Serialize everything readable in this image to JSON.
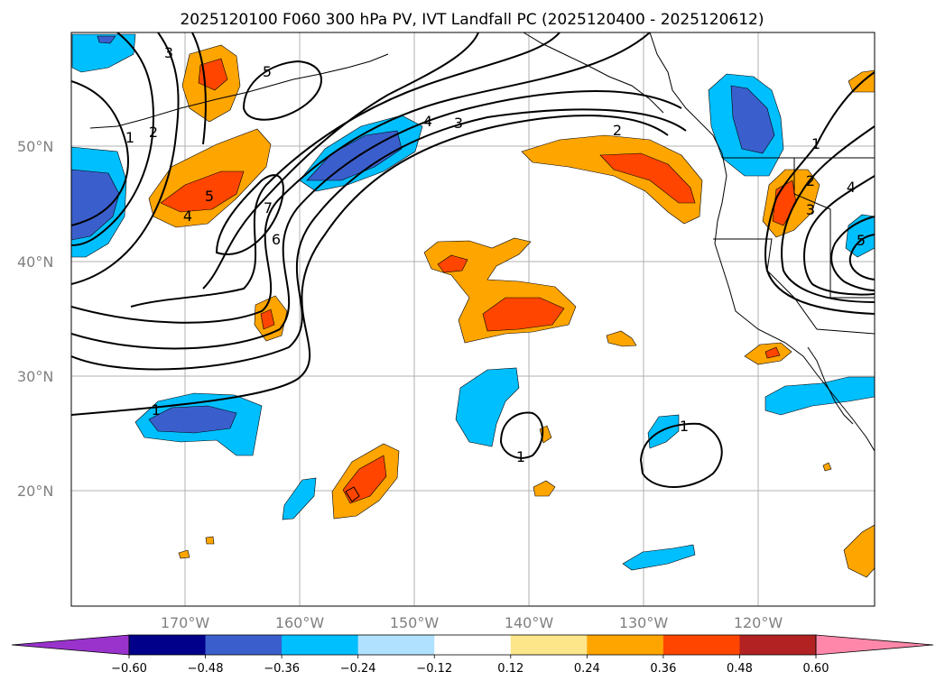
{
  "figure": {
    "title": "2025120100 F060 300 hPa PV, IVT Landfall PC (2025120400 - 2025120612)"
  },
  "map": {
    "lat_labels": [
      "50°N",
      "40°N",
      "30°N",
      "20°N"
    ],
    "lon_labels": [
      "170°W",
      "160°W",
      "150°W",
      "140°W",
      "130°W",
      "120°W"
    ],
    "contour_labels": [
      "1",
      "2",
      "3",
      "4",
      "5",
      "6",
      "7",
      "5",
      "4",
      "3",
      "2",
      "1",
      "1",
      "1",
      "1",
      "2",
      "3",
      "4",
      "5"
    ]
  },
  "colorbar": {
    "tick_labels": [
      "−0.60",
      "−0.48",
      "−0.36",
      "−0.24",
      "−0.12",
      "0.12",
      "0.24",
      "0.36",
      "0.48",
      "0.60"
    ],
    "colors": {
      "under": "#9933cc",
      "bins": [
        "#00008b",
        "#3a5fcd",
        "#00bfff",
        "#b0e2ff",
        "#ffffff",
        "#fde68a",
        "#ffa500",
        "#ff4500",
        "#b22222"
      ],
      "over": "#ff88aa"
    }
  },
  "fill_colors": {
    "dark_blue": "#3a5fcd",
    "light_blue": "#00bfff",
    "orange": "#ffa500",
    "red_orange": "#ff4500"
  }
}
